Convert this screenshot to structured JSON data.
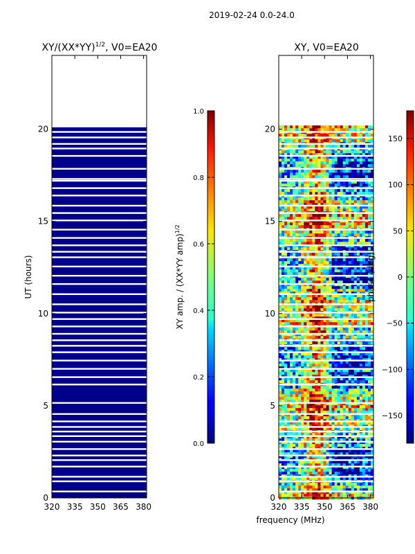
{
  "figure": {
    "suptitle": "2019-02-24 0.0-24.0",
    "xlabel": "frequency (MHz)"
  },
  "chart_data": [
    {
      "type": "heatmap",
      "title_main": "XY/(XX*YY)",
      "title_exp": "1/2",
      "title_tail": ", V0=EA20",
      "xlabel": "",
      "ylabel": "UT (hours)",
      "xlim": [
        320,
        382
      ],
      "ylim": [
        0,
        24
      ],
      "xticks": [
        "320",
        "335",
        "350",
        "365",
        "380"
      ],
      "xtick_values": [
        320,
        335,
        350,
        365,
        380
      ],
      "yticks": [
        "0",
        "5",
        "10",
        "15",
        "20"
      ],
      "ytick_values": [
        0,
        5,
        10,
        15,
        20
      ],
      "data_ut_range": [
        0,
        20.1
      ],
      "colormap": "jet",
      "colorbar": {
        "label_main": "XY amp. / (XX*YY amp)",
        "label_exp": "1/2",
        "range": [
          0.0,
          1.0
        ],
        "ticks": [
          "0.0",
          "0.2",
          "0.4",
          "0.6",
          "0.8",
          "1.0"
        ],
        "tick_values": [
          0.0,
          0.2,
          0.4,
          0.6,
          0.8,
          1.0
        ]
      },
      "gaps_ut": [
        0.35,
        0.9,
        1.15,
        1.7,
        2.05,
        2.3,
        2.65,
        3.05,
        3.35,
        3.6,
        3.85,
        4.15,
        4.55,
        5.15,
        6.15,
        6.55,
        7.0,
        7.45,
        7.9,
        8.25,
        8.55,
        8.9,
        9.3,
        9.7,
        10.05,
        10.5,
        11.05,
        11.6,
        12.05,
        12.55,
        13.05,
        13.35,
        13.7,
        14.1,
        14.55,
        15.05,
        15.45,
        15.85,
        16.4,
        16.8,
        17.2,
        17.3,
        17.85,
        18.55,
        18.95,
        19.2,
        19.55,
        19.85
      ]
    },
    {
      "type": "heatmap",
      "title_main": "XY, V0=EA20",
      "xlabel": "",
      "ylabel": "",
      "xlim": [
        320,
        382
      ],
      "ylim": [
        0,
        24
      ],
      "xticks": [
        "320",
        "335",
        "350",
        "365",
        "380"
      ],
      "xtick_values": [
        320,
        335,
        350,
        365,
        380
      ],
      "yticks": [
        "0",
        "5",
        "10",
        "15",
        "20"
      ],
      "ytick_values": [
        0,
        5,
        10,
        15,
        20
      ],
      "data_ut_range": [
        0,
        20.2
      ],
      "colormap": "jet",
      "colorbar": {
        "label_main": "phase (deg)",
        "range": [
          -180,
          180
        ],
        "ticks": [
          "−150",
          "−100",
          "−50",
          "0",
          "50",
          "100",
          "150"
        ],
        "tick_values": [
          -150,
          -100,
          -50,
          0,
          50,
          100,
          150
        ]
      },
      "gaps_ut": [
        0.35,
        0.9,
        1.15,
        1.7,
        2.05,
        2.3,
        2.65,
        3.05,
        3.35,
        3.6,
        3.85,
        4.15,
        4.55,
        5.15,
        6.15,
        6.55,
        7.0,
        7.45,
        7.9,
        8.25,
        8.55,
        8.9,
        9.3,
        9.7,
        10.05,
        10.5,
        11.05,
        11.6,
        12.05,
        12.55,
        13.05,
        13.35,
        13.7,
        14.1,
        14.55,
        15.05,
        15.45,
        15.85,
        16.4,
        16.8,
        17.2,
        17.3,
        17.85,
        18.55,
        18.95,
        19.2,
        19.55,
        19.85
      ]
    }
  ]
}
